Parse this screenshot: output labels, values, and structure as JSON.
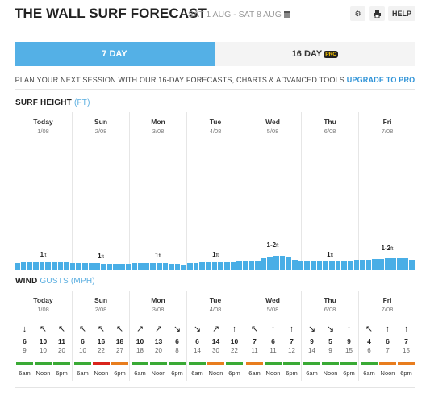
{
  "header": {
    "title": "THE WALL SURF FORECAST",
    "date_range": "SAT 1 AUG - SAT 8 AUG",
    "help_label": "HELP"
  },
  "tabs": {
    "seven_day": "7 DAY",
    "sixteen_day": "16 DAY",
    "pro_badge": "PRO"
  },
  "promo": {
    "text": "PLAN YOUR NEXT SESSION WITH OUR 16-DAY FORECASTS, CHARTS & ADVANCED TOOLS",
    "link": "UPGRADE TO PRO"
  },
  "surf": {
    "title": "SURF HEIGHT",
    "unit": "(FT)",
    "unit_suffix": "ft",
    "days": [
      {
        "day": "Today",
        "date": "1/08",
        "height": "1"
      },
      {
        "day": "Sun",
        "date": "2/08",
        "height": "1"
      },
      {
        "day": "Mon",
        "date": "3/08",
        "height": "1"
      },
      {
        "day": "Tue",
        "date": "4/08",
        "height": "1"
      },
      {
        "day": "Wed",
        "date": "5/08",
        "height": "1-2"
      },
      {
        "day": "Thu",
        "date": "6/08",
        "height": "1"
      },
      {
        "day": "Fri",
        "date": "7/08",
        "height": "1-2"
      }
    ],
    "bar_levels": [
      0.4,
      0.45,
      0.45,
      0.45,
      0.45,
      0.45,
      0.45,
      0.45,
      0.45,
      0.4,
      0.4,
      0.4,
      0.4,
      0.4,
      0.35,
      0.35,
      0.35,
      0.35,
      0.35,
      0.4,
      0.4,
      0.4,
      0.4,
      0.4,
      0.4,
      0.35,
      0.35,
      0.3,
      0.4,
      0.4,
      0.45,
      0.45,
      0.45,
      0.45,
      0.45,
      0.45,
      0.5,
      0.55,
      0.55,
      0.5,
      0.7,
      0.8,
      0.85,
      0.85,
      0.8,
      0.6,
      0.5,
      0.55,
      0.55,
      0.5,
      0.5,
      0.55,
      0.55,
      0.55,
      0.55,
      0.6,
      0.6,
      0.6,
      0.65,
      0.65,
      0.7,
      0.7,
      0.7,
      0.7,
      0.6
    ]
  },
  "wind": {
    "title": "WIND",
    "gusts_label": "GUSTS",
    "unit": "(MPH)",
    "days": [
      {
        "day": "Today",
        "date": "1/08",
        "slots": [
          {
            "arrow": "↓",
            "speed": "6",
            "gust": "9",
            "time": "6am",
            "color": "#3aaa35"
          },
          {
            "arrow": "↖",
            "speed": "10",
            "gust": "10",
            "time": "Noon",
            "color": "#3aaa35"
          },
          {
            "arrow": "↖",
            "speed": "11",
            "gust": "20",
            "time": "6pm",
            "color": "#3aaa35"
          }
        ]
      },
      {
        "day": "Sun",
        "date": "2/08",
        "slots": [
          {
            "arrow": "↖",
            "speed": "6",
            "gust": "10",
            "time": "6am",
            "color": "#3aaa35"
          },
          {
            "arrow": "↖",
            "speed": "16",
            "gust": "22",
            "time": "Noon",
            "color": "#d9241b"
          },
          {
            "arrow": "↖",
            "speed": "18",
            "gust": "27",
            "time": "6pm",
            "color": "#e87d1e"
          }
        ]
      },
      {
        "day": "Mon",
        "date": "3/08",
        "slots": [
          {
            "arrow": "↗",
            "speed": "10",
            "gust": "18",
            "time": "6am",
            "color": "#3aaa35"
          },
          {
            "arrow": "↗",
            "speed": "13",
            "gust": "20",
            "time": "Noon",
            "color": "#3aaa35"
          },
          {
            "arrow": "↘",
            "speed": "6",
            "gust": "8",
            "time": "6pm",
            "color": "#3aaa35"
          }
        ]
      },
      {
        "day": "Tue",
        "date": "4/08",
        "slots": [
          {
            "arrow": "↘",
            "speed": "6",
            "gust": "14",
            "time": "6am",
            "color": "#3aaa35"
          },
          {
            "arrow": "↗",
            "speed": "14",
            "gust": "30",
            "time": "Noon",
            "color": "#e87d1e"
          },
          {
            "arrow": "↑",
            "speed": "10",
            "gust": "22",
            "time": "6pm",
            "color": "#3aaa35"
          }
        ]
      },
      {
        "day": "Wed",
        "date": "5/08",
        "slots": [
          {
            "arrow": "↖",
            "speed": "7",
            "gust": "11",
            "time": "6am",
            "color": "#e87d1e"
          },
          {
            "arrow": "↑",
            "speed": "6",
            "gust": "11",
            "time": "Noon",
            "color": "#3aaa35"
          },
          {
            "arrow": "↑",
            "speed": "7",
            "gust": "12",
            "time": "6pm",
            "color": "#3aaa35"
          }
        ]
      },
      {
        "day": "Thu",
        "date": "6/08",
        "slots": [
          {
            "arrow": "↘",
            "speed": "9",
            "gust": "14",
            "time": "6am",
            "color": "#3aaa35"
          },
          {
            "arrow": "↘",
            "speed": "5",
            "gust": "9",
            "time": "Noon",
            "color": "#3aaa35"
          },
          {
            "arrow": "↑",
            "speed": "9",
            "gust": "15",
            "time": "6pm",
            "color": "#3aaa35"
          }
        ]
      },
      {
        "day": "Fri",
        "date": "7/08",
        "slots": [
          {
            "arrow": "↖",
            "speed": "4",
            "gust": "6",
            "time": "6am",
            "color": "#3aaa35"
          },
          {
            "arrow": "↑",
            "speed": "6",
            "gust": "7",
            "time": "Noon",
            "color": "#e87d1e"
          },
          {
            "arrow": "↑",
            "speed": "7",
            "gust": "15",
            "time": "6pm",
            "color": "#e87d1e"
          }
        ]
      }
    ]
  },
  "icons": {
    "settings": "gear-icon",
    "print": "print-icon",
    "calendar": "calendar-icon"
  }
}
